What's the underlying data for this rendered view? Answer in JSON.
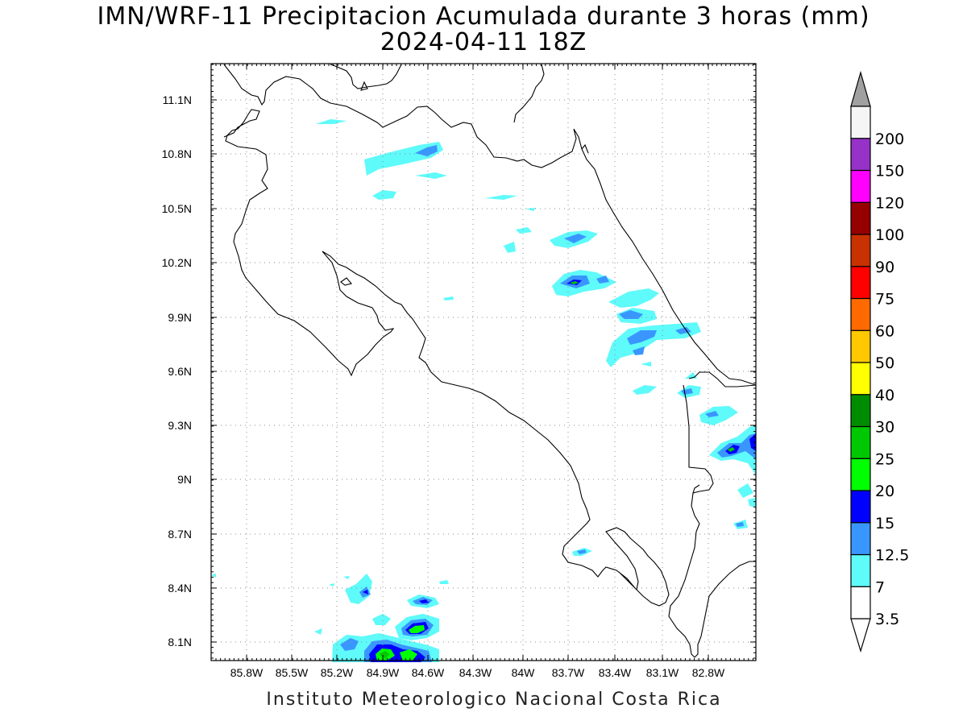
{
  "title": "IMN/WRF-11 Precipitacion Acumulada durante 3 horas (mm)",
  "subtitle": "2024-04-11 18Z",
  "credit": "Instituto Meteorologico Nacional Costa Rica",
  "map": {
    "lon_range": [
      -86.12,
      -82.53
    ],
    "lat_range": [
      8.0,
      11.3
    ],
    "lon_ticks": [
      "85.8W",
      "85.5W",
      "85.2W",
      "84.9W",
      "84.6W",
      "84.3W",
      "84W",
      "83.7W",
      "83.4W",
      "83.1W",
      "82.8W"
    ],
    "lat_ticks": [
      "11.1N",
      "10.8N",
      "10.5N",
      "10.2N",
      "9.9N",
      "9.6N",
      "9.3N",
      "9N",
      "8.7N",
      "8.4N",
      "8.1N"
    ],
    "grid": "dotted"
  },
  "colorbar": {
    "labels": [
      "3.5",
      "7",
      "12.5",
      "15",
      "20",
      "25",
      "30",
      "40",
      "50",
      "60",
      "75",
      "90",
      "100",
      "120",
      "150",
      "200"
    ],
    "colors": [
      "#ffffff",
      "#5ffafa",
      "#3a96ff",
      "#0000ff",
      "#00ff00",
      "#00c800",
      "#008c00",
      "#ffff00",
      "#ffc800",
      "#ff6a00",
      "#ff0000",
      "#c83200",
      "#960000",
      "#ff00ff",
      "#9632c8",
      "#f5f5f5",
      "#a0a0a0"
    ],
    "max_arrow_color": "#a0a0a0",
    "min_arrow_color": "#ffffff"
  }
}
